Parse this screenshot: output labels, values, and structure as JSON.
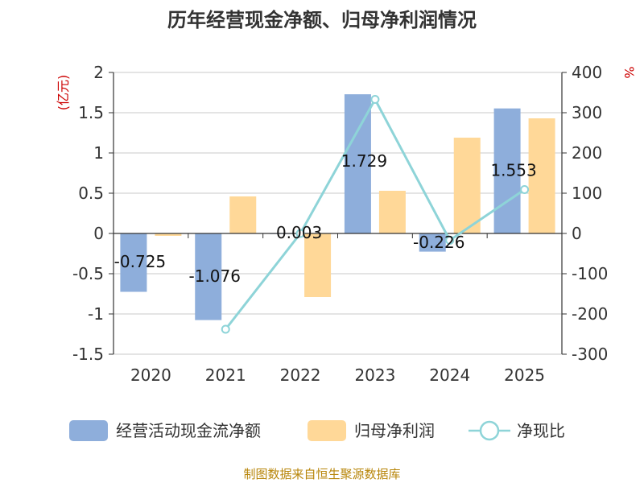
{
  "chart_data": {
    "type": "bar",
    "title": "历年经营现金净额、归母净利润情况",
    "categories": [
      "2020",
      "2021",
      "2022",
      "2023",
      "2024",
      "2025"
    ],
    "series": [
      {
        "name": "经营活动现金流净额",
        "type": "bar",
        "axis": "left",
        "color": "#8eaedb",
        "values": [
          -0.725,
          -1.076,
          0.003,
          1.729,
          -0.226,
          1.553
        ],
        "labels": [
          "-0.725",
          "-1.076",
          "0.003",
          "1.729",
          "-0.226",
          "1.553"
        ]
      },
      {
        "name": "归母净利润",
        "type": "bar",
        "axis": "left",
        "color": "#ffd898",
        "values": [
          -0.03,
          0.46,
          -0.79,
          0.53,
          1.19,
          1.43
        ]
      },
      {
        "name": "净现比",
        "type": "line",
        "axis": "right",
        "color": "#8ed4d8",
        "values": [
          null,
          -238,
          0,
          333,
          -17,
          109
        ]
      }
    ],
    "left_axis": {
      "unit": "(亿元)",
      "ylim": [
        -1.5,
        2
      ],
      "ticks": [
        2,
        1.5,
        1,
        0.5,
        0,
        -0.5,
        -1,
        -1.5
      ],
      "tick_labels": [
        "2",
        "1.5",
        "1",
        "0.5",
        "0",
        "-0.5",
        "-1",
        "-1.5"
      ]
    },
    "right_axis": {
      "unit": "%",
      "ylim": [
        -300,
        400
      ],
      "ticks": [
        400,
        300,
        200,
        100,
        0,
        -100,
        -200,
        -300
      ],
      "tick_labels": [
        "400",
        "300",
        "200",
        "100",
        "0",
        "-100",
        "-200",
        "-300"
      ]
    },
    "grid": true,
    "legend_position": "bottom",
    "source": "制图数据来自恒生聚源数据库"
  }
}
